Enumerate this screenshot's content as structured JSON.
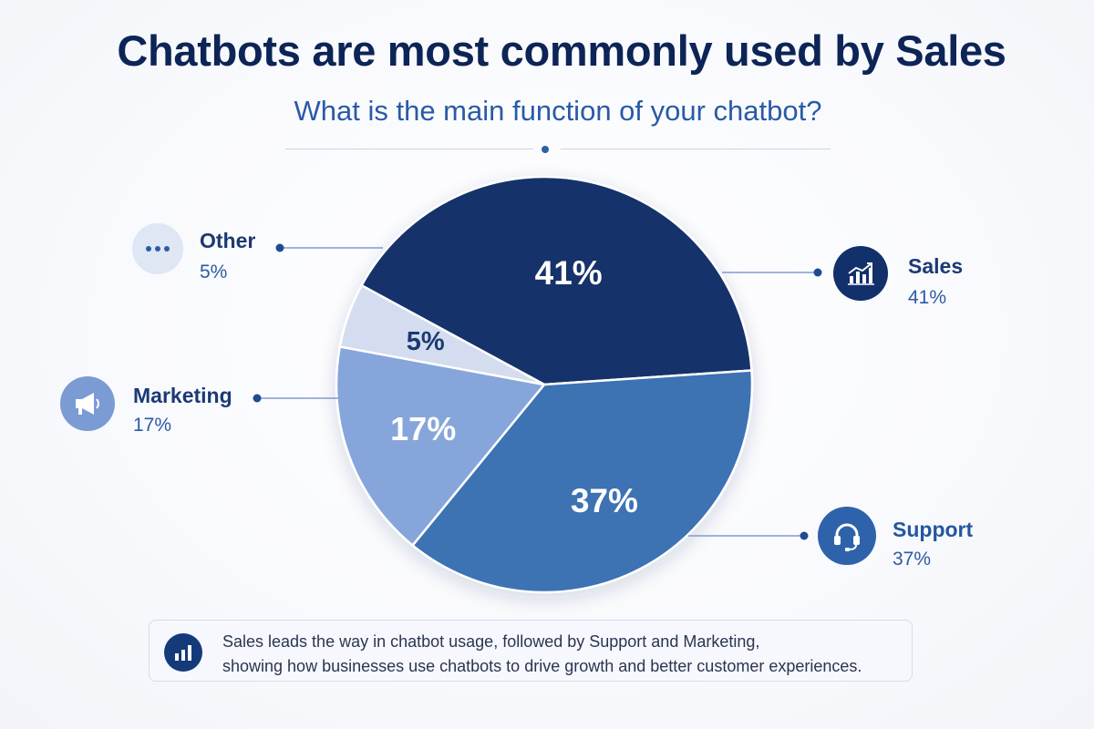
{
  "chart_data": {
    "type": "pie",
    "title": "Chatbots are most commonly used by Sales",
    "subtitle": "What is the main function of your chatbot?",
    "slices": [
      {
        "label": "Sales",
        "value": 41,
        "value_label": "41%",
        "color": "#12306a"
      },
      {
        "label": "Support",
        "value": 37,
        "value_label": "37%",
        "color": "#3d72b3"
      },
      {
        "label": "Marketing",
        "value": 17,
        "value_label": "17%",
        "color": "#86a5da"
      },
      {
        "label": "Other",
        "value": 5,
        "value_label": "5%",
        "color": "#d4dcef"
      }
    ],
    "legend": {
      "other": {
        "name": "Other",
        "pct": "5%",
        "icon": "ellipsis-icon"
      },
      "sales": {
        "name": "Sales",
        "pct": "41%",
        "icon": "chart-growth-icon"
      },
      "marketing": {
        "name": "Marketing",
        "pct": "17%",
        "icon": "megaphone-icon"
      },
      "support": {
        "name": "Support",
        "pct": "37%",
        "icon": "headset-icon"
      }
    }
  },
  "note": {
    "line1": "Sales leads the way in chatbot usage, followed by Support and Marketing,",
    "line2": "showing how businesses use chatbots to drive growth and better customer experiences.",
    "icon": "bar-chart-icon"
  },
  "colors": {
    "title": "#0d2456",
    "subtitle": "#2a5aa6",
    "accent": "#2f5fa8"
  }
}
